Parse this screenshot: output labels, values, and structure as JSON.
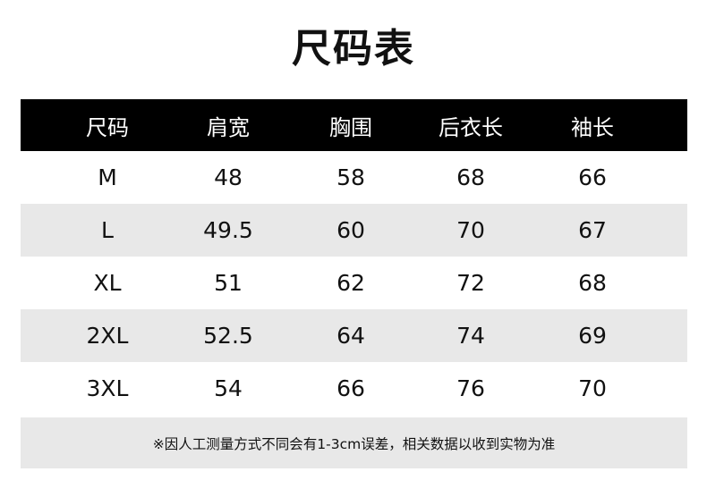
{
  "title": "尺码表",
  "headers": [
    "尺码",
    "肩宽",
    "胸围",
    "后衣长",
    "袖长"
  ],
  "rows": [
    [
      "M",
      "48",
      "58",
      "68",
      "66"
    ],
    [
      "L",
      "49.5",
      "60",
      "70",
      "67"
    ],
    [
      "XL",
      "51",
      "62",
      "72",
      "68"
    ],
    [
      "2XL",
      "52.5",
      "64",
      "74",
      "69"
    ],
    [
      "3XL",
      "54",
      "66",
      "76",
      "70"
    ]
  ],
  "note": "※因人工测量方式不同会有1-3cm误差，相关数据以收到实物为准",
  "colors": {
    "header_bg": "#000000",
    "stripe_bg": "#e8e8e8"
  }
}
